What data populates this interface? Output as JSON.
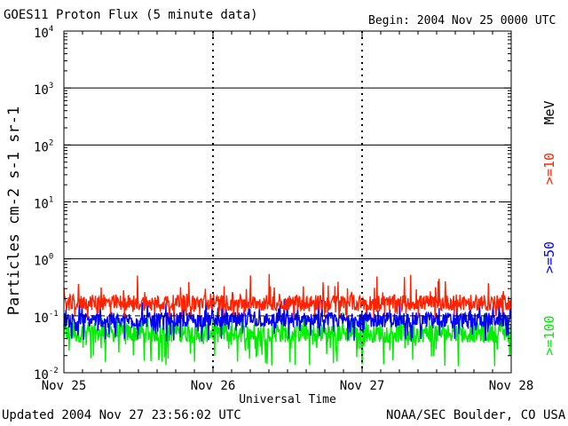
{
  "header": {
    "title": "GOES11 Proton Flux (5 minute data)",
    "begin": "Begin: 2004 Nov 25 0000 UTC"
  },
  "footer": {
    "updated": "Updated 2004 Nov 27 23:56:02 UTC",
    "credit": "NOAA/SEC Boulder, CO USA"
  },
  "chart_data": {
    "type": "line",
    "title": "GOES11 Proton Flux (5 minute data)",
    "xlabel": "Universal Time",
    "ylabel": "Particles cm-2 s-1 sr-1",
    "yscale": "log",
    "ylim": [
      0.01,
      10000
    ],
    "xlim": [
      "2004-11-25",
      "2004-11-28"
    ],
    "x_ticks": [
      "Nov 25",
      "Nov 26",
      "Nov 27",
      "Nov 28"
    ],
    "y_ticks": [
      {
        "base": "10",
        "exp": "-2"
      },
      {
        "base": "10",
        "exp": "-1"
      },
      {
        "base": "10",
        "exp": "0"
      },
      {
        "base": "10",
        "exp": "1"
      },
      {
        "base": "10",
        "exp": "2"
      },
      {
        "base": "10",
        "exp": "3"
      },
      {
        "base": "10",
        "exp": "4"
      }
    ],
    "reference_lines": [
      {
        "y": 10,
        "style": "dashed"
      },
      {
        "y": 0.1,
        "style": "dashed"
      }
    ],
    "grid": true,
    "legend_position": "right",
    "unit_label": "MeV",
    "series": [
      {
        "name": ">=10",
        "color": "#ff2200",
        "typical": 0.17,
        "range": [
          0.09,
          0.55
        ]
      },
      {
        "name": ">=50",
        "color": "#0000ff",
        "typical": 0.085,
        "range": [
          0.035,
          0.2
        ]
      },
      {
        "name": ">=100",
        "color": "#00ee00",
        "typical": 0.05,
        "range": [
          0.013,
          0.12
        ]
      }
    ]
  }
}
